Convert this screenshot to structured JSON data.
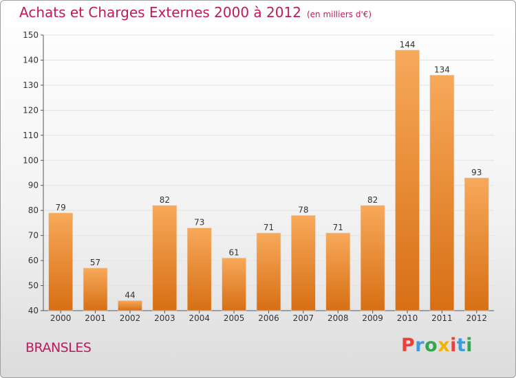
{
  "header": {
    "title": "Achats et Charges Externes 2000 à 2012",
    "subtitle": "(en milliers d'€)"
  },
  "footer": {
    "city": "BRANSLES",
    "logo_text": "Proxiti",
    "logo_colors": [
      "#e8433a",
      "#3a9de0",
      "#2fa84f",
      "#f5b301"
    ]
  },
  "colors": {
    "bar_top": "#f7a95a",
    "bar_bottom": "#d76f14",
    "axis": "#555555",
    "grid": "#e2e2e2",
    "text": "#333333"
  },
  "chart_data": {
    "type": "bar",
    "categories": [
      "2000",
      "2001",
      "2002",
      "2003",
      "2004",
      "2005",
      "2006",
      "2007",
      "2008",
      "2009",
      "2010",
      "2011",
      "2012"
    ],
    "values": [
      79,
      57,
      44,
      82,
      73,
      61,
      71,
      78,
      71,
      82,
      144,
      134,
      93
    ],
    "title": "Achats et Charges Externes 2000 à 2012",
    "subtitle": "(en milliers d'€)",
    "xlabel": "",
    "ylabel": "",
    "ylim": [
      40,
      150
    ],
    "yticks": [
      40,
      50,
      60,
      70,
      80,
      90,
      100,
      110,
      120,
      130,
      140,
      150
    ],
    "grid": "horizontal",
    "data_labels": true
  }
}
